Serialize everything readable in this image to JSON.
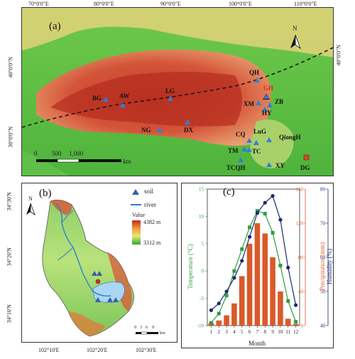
{
  "panel_a": {
    "label": "(a)",
    "lon_ticks": [
      "70°0'0\"E",
      "80°0'0\"E",
      "90°0'0\"E",
      "100°0'0\"E",
      "110°0'0\"E"
    ],
    "lat_ticks": [
      "40°0'0\"N",
      "30°0'0\"N"
    ],
    "north": "N",
    "scale": [
      "0",
      "500",
      "1,000",
      "km"
    ],
    "sites": [
      {
        "code": "QH",
        "type": "soil"
      },
      {
        "code": "GH",
        "type": "highlight",
        "color": "#e0242a"
      },
      {
        "code": "BG",
        "type": "soil"
      },
      {
        "code": "AW",
        "type": "soil"
      },
      {
        "code": "LG",
        "type": "soil"
      },
      {
        "code": "XM",
        "type": "soil"
      },
      {
        "code": "ZB",
        "type": "soil"
      },
      {
        "code": "HY",
        "type": "soil"
      },
      {
        "code": "NG",
        "type": "soil"
      },
      {
        "code": "DX",
        "type": "soil"
      },
      {
        "code": "CQ",
        "type": "soil"
      },
      {
        "code": "LuG",
        "type": "soil"
      },
      {
        "code": "QiongH",
        "type": "soil"
      },
      {
        "code": "TM",
        "type": "soil"
      },
      {
        "code": "TC",
        "type": "soil"
      },
      {
        "code": "TCQH",
        "type": "soil"
      },
      {
        "code": "XY",
        "type": "soil"
      },
      {
        "code": "DG",
        "type": "square"
      }
    ]
  },
  "panel_b": {
    "label": "(b)",
    "lat_ticks": [
      "34°30'N",
      "34°20'N",
      "34°10'N"
    ],
    "lon_ticks": [
      "102°10'E",
      "102°20'E",
      "102°30'E"
    ],
    "legend_soil": "soil",
    "legend_river": "river",
    "value_title": "Value",
    "value_max": "4382 m",
    "value_min": "3312 m",
    "scale": [
      "0",
      "3",
      "6",
      "9"
    ],
    "scale_unit": "km",
    "north": "N"
  },
  "panel_c": {
    "label": "(c)",
    "xlabel": "Month",
    "ylabel_left": "Temperature (°C)",
    "ylabel_right1": "Precipitation (mm)",
    "ylabel_right2": "Humidity (%)",
    "colors": {
      "temperature": "#2e9e3e",
      "precipitation": "#d85a2a",
      "humidity": "#1b2a6e"
    }
  },
  "chart_data": {
    "type": "bar",
    "categories": [
      "1",
      "2",
      "3",
      "4",
      "5",
      "6",
      "7",
      "8",
      "9",
      "10",
      "11",
      "12"
    ],
    "xlabel": "Month",
    "ylabel": "Temperature (°C)",
    "ylim": [
      -10,
      15
    ],
    "yticks": [
      -10,
      -5,
      0,
      5,
      10,
      15
    ],
    "series": [
      {
        "name": "Precipitation (mm)",
        "axis": "right1",
        "type": "bar",
        "ylim": [
          0,
          160
        ],
        "yticks": [
          0,
          40,
          80,
          120,
          160
        ],
        "values": [
          3,
          6,
          12,
          26,
          58,
          96,
          120,
          108,
          80,
          40,
          8,
          2
        ]
      },
      {
        "name": "Temperature (°C)",
        "axis": "left",
        "type": "line",
        "values": [
          -9.5,
          -7.8,
          -4.5,
          0,
          4,
          8,
          11,
          10.5,
          7,
          1,
          -5.5,
          -9.3
        ]
      },
      {
        "name": "Humidity (%)",
        "axis": "right2",
        "type": "line",
        "ylim": [
          40,
          80
        ],
        "yticks": [
          40,
          50,
          60,
          70,
          80
        ],
        "values": [
          44.5,
          46.5,
          50,
          54,
          59,
          66,
          73,
          76,
          78,
          71,
          57,
          46
        ]
      }
    ]
  }
}
